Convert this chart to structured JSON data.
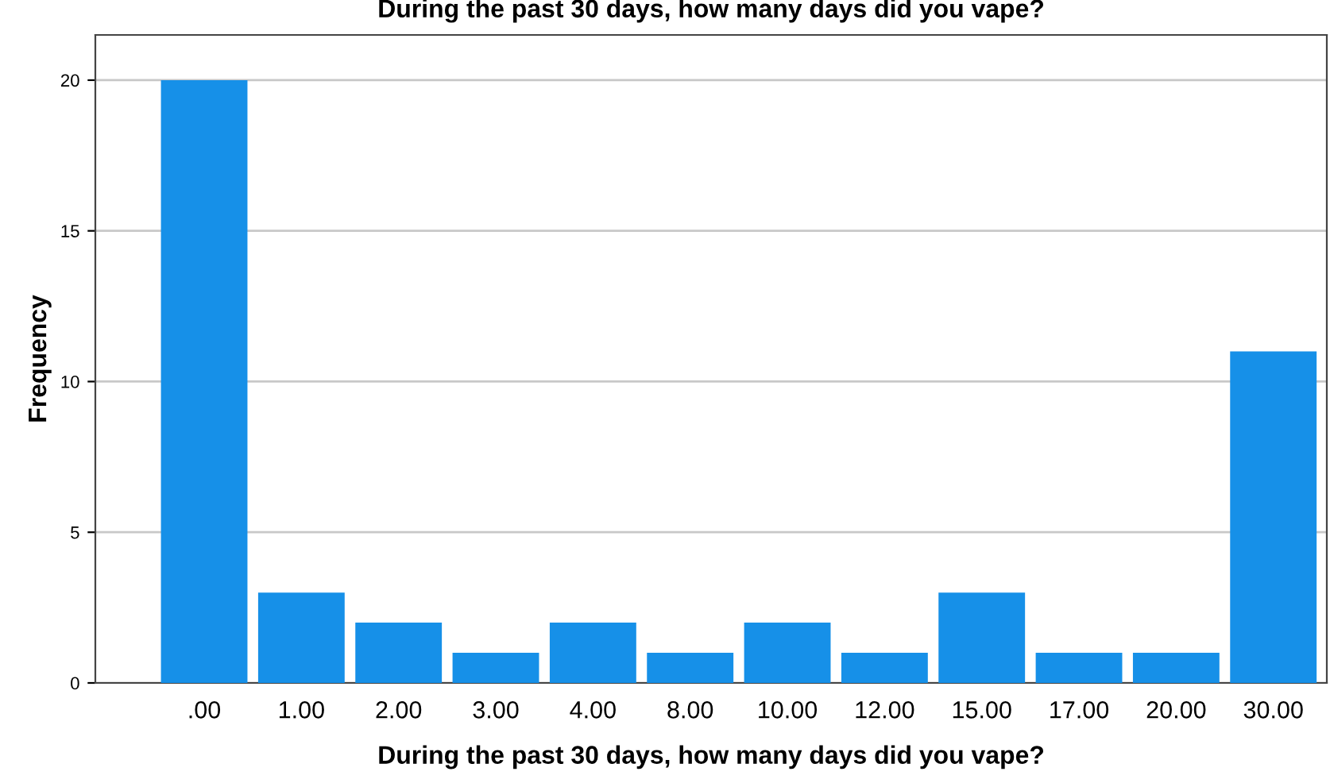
{
  "chart_data": {
    "type": "bar",
    "title": "During the past 30 days, how many days did you vape?",
    "xlabel": "During the past 30 days, how many days did you vape?",
    "ylabel": "Frequency",
    "categories": [
      ".00",
      "1.00",
      "2.00",
      "3.00",
      "4.00",
      "8.00",
      "10.00",
      "12.00",
      "15.00",
      "17.00",
      "20.00",
      "30.00"
    ],
    "values": [
      20,
      3,
      2,
      1,
      2,
      1,
      2,
      1,
      3,
      1,
      1,
      11
    ],
    "color": "#1690e8",
    "ylim": [
      0,
      21.5
    ],
    "yticks": [
      0,
      5,
      10,
      15,
      20
    ],
    "grid": "y",
    "legend": false
  }
}
